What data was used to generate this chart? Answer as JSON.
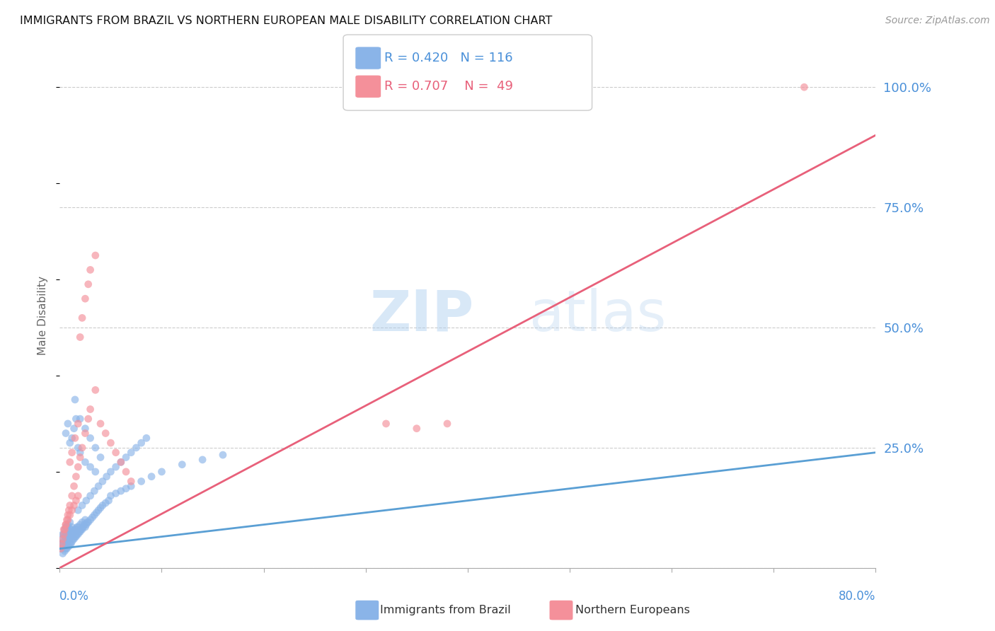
{
  "title": "IMMIGRANTS FROM BRAZIL VS NORTHERN EUROPEAN MALE DISABILITY CORRELATION CHART",
  "source": "Source: ZipAtlas.com",
  "ylabel": "Male Disability",
  "xmin": 0.0,
  "xmax": 0.8,
  "ymin": 0.0,
  "ymax": 1.05,
  "legend_brazil_R": "0.420",
  "legend_brazil_N": "116",
  "legend_ne_R": "0.707",
  "legend_ne_N": "49",
  "brazil_color": "#8ab4e8",
  "ne_color": "#f4909a",
  "brazil_line_color": "#5a9fd4",
  "ne_line_color": "#e8607a",
  "brazil_scatter_x": [
    0.001,
    0.002,
    0.002,
    0.003,
    0.003,
    0.003,
    0.004,
    0.004,
    0.004,
    0.005,
    0.005,
    0.005,
    0.005,
    0.006,
    0.006,
    0.006,
    0.006,
    0.007,
    0.007,
    0.007,
    0.007,
    0.008,
    0.008,
    0.008,
    0.008,
    0.009,
    0.009,
    0.009,
    0.01,
    0.01,
    0.01,
    0.01,
    0.011,
    0.011,
    0.011,
    0.012,
    0.012,
    0.012,
    0.013,
    0.013,
    0.014,
    0.014,
    0.015,
    0.015,
    0.016,
    0.016,
    0.017,
    0.017,
    0.018,
    0.018,
    0.019,
    0.02,
    0.02,
    0.021,
    0.022,
    0.022,
    0.023,
    0.024,
    0.025,
    0.025,
    0.026,
    0.027,
    0.028,
    0.03,
    0.032,
    0.034,
    0.036,
    0.038,
    0.04,
    0.042,
    0.045,
    0.048,
    0.05,
    0.055,
    0.06,
    0.065,
    0.07,
    0.08,
    0.09,
    0.1,
    0.12,
    0.14,
    0.16,
    0.006,
    0.008,
    0.01,
    0.012,
    0.014,
    0.016,
    0.018,
    0.02,
    0.025,
    0.03,
    0.035,
    0.015,
    0.02,
    0.025,
    0.03,
    0.035,
    0.04,
    0.018,
    0.022,
    0.026,
    0.03,
    0.034,
    0.038,
    0.042,
    0.046,
    0.05,
    0.055,
    0.06,
    0.065,
    0.07,
    0.075,
    0.08,
    0.085
  ],
  "brazil_scatter_y": [
    0.05,
    0.04,
    0.06,
    0.03,
    0.05,
    0.07,
    0.04,
    0.055,
    0.07,
    0.035,
    0.05,
    0.065,
    0.08,
    0.04,
    0.055,
    0.07,
    0.085,
    0.04,
    0.055,
    0.07,
    0.085,
    0.045,
    0.06,
    0.075,
    0.09,
    0.045,
    0.06,
    0.075,
    0.05,
    0.065,
    0.08,
    0.095,
    0.05,
    0.065,
    0.08,
    0.055,
    0.07,
    0.085,
    0.06,
    0.075,
    0.06,
    0.075,
    0.065,
    0.08,
    0.065,
    0.08,
    0.07,
    0.085,
    0.07,
    0.085,
    0.075,
    0.075,
    0.09,
    0.08,
    0.08,
    0.095,
    0.085,
    0.09,
    0.085,
    0.1,
    0.09,
    0.095,
    0.095,
    0.1,
    0.105,
    0.11,
    0.115,
    0.12,
    0.125,
    0.13,
    0.135,
    0.14,
    0.15,
    0.155,
    0.16,
    0.165,
    0.17,
    0.18,
    0.19,
    0.2,
    0.215,
    0.225,
    0.235,
    0.28,
    0.3,
    0.26,
    0.27,
    0.29,
    0.31,
    0.25,
    0.24,
    0.22,
    0.21,
    0.2,
    0.35,
    0.31,
    0.29,
    0.27,
    0.25,
    0.23,
    0.12,
    0.13,
    0.14,
    0.15,
    0.16,
    0.17,
    0.18,
    0.19,
    0.2,
    0.21,
    0.22,
    0.23,
    0.24,
    0.25,
    0.26,
    0.27
  ],
  "ne_scatter_x": [
    0.001,
    0.002,
    0.003,
    0.004,
    0.005,
    0.006,
    0.007,
    0.008,
    0.009,
    0.01,
    0.012,
    0.014,
    0.016,
    0.018,
    0.02,
    0.022,
    0.025,
    0.028,
    0.03,
    0.035,
    0.01,
    0.012,
    0.015,
    0.018,
    0.02,
    0.022,
    0.025,
    0.028,
    0.03,
    0.035,
    0.04,
    0.045,
    0.05,
    0.055,
    0.06,
    0.065,
    0.07,
    0.38,
    0.35,
    0.32,
    0.004,
    0.006,
    0.008,
    0.01,
    0.012,
    0.014,
    0.016,
    0.018,
    0.73
  ],
  "ne_scatter_y": [
    0.04,
    0.05,
    0.06,
    0.07,
    0.08,
    0.09,
    0.1,
    0.11,
    0.12,
    0.13,
    0.15,
    0.17,
    0.19,
    0.21,
    0.23,
    0.25,
    0.28,
    0.31,
    0.33,
    0.37,
    0.22,
    0.24,
    0.27,
    0.3,
    0.48,
    0.52,
    0.56,
    0.59,
    0.62,
    0.65,
    0.3,
    0.28,
    0.26,
    0.24,
    0.22,
    0.2,
    0.18,
    0.3,
    0.29,
    0.3,
    0.08,
    0.09,
    0.1,
    0.11,
    0.12,
    0.13,
    0.14,
    0.15,
    1.0
  ],
  "brazil_line_x": [
    0.0,
    0.8
  ],
  "brazil_line_y": [
    0.04,
    0.24
  ],
  "ne_line_x": [
    0.0,
    0.8
  ],
  "ne_line_y": [
    0.0,
    0.9
  ]
}
